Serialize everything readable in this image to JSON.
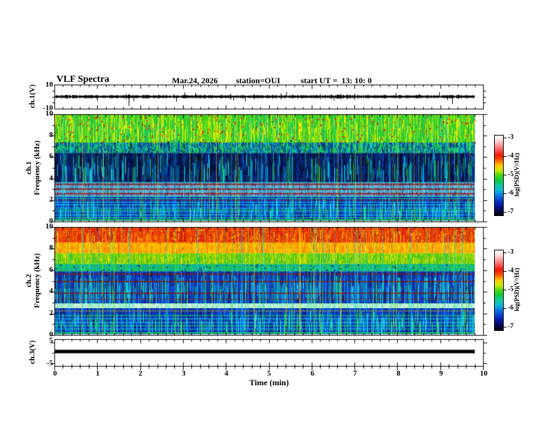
{
  "title": {
    "main": "VLF Spectra",
    "date": "Mar.24, 2026",
    "station": "station=OUI",
    "start_ut": "start UT =  13: 10: 0"
  },
  "xaxis": {
    "label": "Time (min)",
    "ticks": [
      "0",
      "1",
      "2",
      "3",
      "4",
      "5",
      "6",
      "7",
      "8",
      "9",
      "10"
    ]
  },
  "panels": {
    "ch1_wave": {
      "label": "ch.1(V)",
      "ytop": "10",
      "ybottom": "-10"
    },
    "spec1": {
      "label": "ch.1\nFrequency (kHz)",
      "yticks": [
        "10",
        "8",
        "6",
        "4",
        "2",
        "0"
      ]
    },
    "spec2": {
      "label": "ch.2\nFrequency (kHz)",
      "yticks": [
        "10",
        "8",
        "6",
        "4",
        "2",
        "0"
      ]
    },
    "ch3_wave": {
      "label": "ch.3(V)",
      "ytop": "5",
      "ybottom": "-5"
    }
  },
  "colorbars": [
    {
      "label": "log(PSD)(V²/Hz)",
      "ticks": [
        "-3",
        "-4",
        "-5",
        "-6",
        "-7"
      ],
      "gradient": [
        "#ffffff",
        "#ffd8d8",
        "#ff9898",
        "#ff5050",
        "#f01800",
        "#ff6000",
        "#ffc800",
        "#c8e800",
        "#48d810",
        "#10c840",
        "#10c8a0",
        "#10b8d8",
        "#0878e0",
        "#0840d0",
        "#0418a0",
        "#020a50",
        "#000010"
      ]
    },
    {
      "label": "log(PSD)(V²/Hz)",
      "ticks": [
        "-3",
        "-4",
        "-5",
        "-6",
        "-7"
      ],
      "gradient": [
        "#ffffff",
        "#ffd8d8",
        "#ff9898",
        "#ff5050",
        "#f01800",
        "#ff6000",
        "#ffc800",
        "#c8e800",
        "#48d810",
        "#10c840",
        "#10c8a0",
        "#10b8d8",
        "#0878e0",
        "#0840d0",
        "#0418a0",
        "#020a50",
        "#000010"
      ]
    }
  ],
  "chart_data": [
    {
      "id": "ch1_waveform",
      "type": "line",
      "title": "ch.1 raw signal",
      "xlabel": "Time (min)",
      "ylabel": "ch.1(V)",
      "xlim": [
        0,
        10
      ],
      "ylim": [
        -10,
        10
      ],
      "data_end_min": 9.83,
      "seed": 7,
      "signal": {
        "mean_v": 0,
        "noise_amp_v": 1.2,
        "burst_prob": 0.06,
        "spike_prob": 0.018,
        "spike_down_v": -8,
        "spike_up_prob": 0.007,
        "spike_up_v": 4
      }
    },
    {
      "id": "ch1_spectrogram",
      "type": "heatmap",
      "title": "ch.1 VLF spectrogram",
      "xlabel": "Time (min)",
      "ylabel": "ch.1 Frequency (kHz)",
      "zlabel": "log(PSD)(V²/Hz)",
      "xlim": [
        0,
        10
      ],
      "ylim": [
        0,
        10
      ],
      "zlim": [
        -7,
        -3
      ],
      "data_end_min": 9.83,
      "seed": 11,
      "bands": [
        {
          "f": [
            7.4,
            10
          ],
          "palette": [
            "#2ec82e",
            "#3ad428",
            "#55d81a",
            "#83dd0e",
            "#b2e800",
            "#e6f000",
            "#27bd35",
            "#1fc34a",
            "#36cf2d",
            "#49d51f"
          ],
          "streaks": {
            "prob": 0.3,
            "colors": [
              "#e8f000",
              "#ffe400",
              "#19c080"
            ]
          }
        },
        {
          "f": [
            6.4,
            7.4
          ],
          "palette": [
            "#1cb84c",
            "#12b090",
            "#10c8c8",
            "#0b3fa0",
            "#082472",
            "#25c838",
            "#0a55c0"
          ],
          "streaks": {
            "prob": 0.25,
            "colors": [
              "#00cfe8",
              "#27e03c"
            ]
          }
        },
        {
          "f": [
            3.6,
            6.4
          ],
          "palette": [
            "#020d38",
            "#03164e",
            "#041f66",
            "#030a28",
            "#062a80",
            "#0a38a0"
          ],
          "streaks": {
            "prob": 0.3,
            "colors": [
              "#00cfe8",
              "#22dcff",
              "#2be0c8",
              "#27e03c"
            ]
          }
        },
        {
          "f": [
            2.3,
            3.6
          ],
          "palette": [
            "#7e90b6",
            "#8a9ac0",
            "#7082aa",
            "#97a6c8",
            "#5f74a2",
            "#3a4f86"
          ],
          "streaks": {
            "prob": 0.15,
            "colors": [
              "#22dcff",
              "#9ae8f0"
            ]
          }
        },
        {
          "f": [
            0,
            2.3
          ],
          "palette": [
            "#0a36c8",
            "#0c2ca0",
            "#0843dc",
            "#062a88",
            "#051c60",
            "#0a4fe8"
          ],
          "streaks": {
            "prob": 0.45,
            "colors": [
              "#00d4ee",
              "#24e4ff",
              "#28e06a"
            ]
          }
        }
      ],
      "h_lines": [
        {
          "f": 3.45,
          "color": "#7a1626",
          "w": 2
        },
        {
          "f": 3.0,
          "color": "#7a1626",
          "w": 2
        },
        {
          "f": 2.55,
          "color": "#7a1626",
          "w": 2
        },
        {
          "f": 1.95,
          "color": "#8a1a2a",
          "w": 1
        },
        {
          "f": 3.62,
          "color": "#20e0e8",
          "w": 1
        },
        {
          "f": 3.18,
          "color": "#28e8f0",
          "w": 1
        },
        {
          "f": 2.78,
          "color": "#20d8e8",
          "w": 1
        },
        {
          "f": 2.3,
          "color": "#30e8d0",
          "w": 1
        },
        {
          "f": 2.1,
          "color": "#28e08a",
          "w": 1
        },
        {
          "f": 1.75,
          "color": "#22d8e8",
          "w": 1
        },
        {
          "f": 1.5,
          "color": "#2ae4f2",
          "w": 1
        },
        {
          "f": 1.2,
          "color": "#20d0e8",
          "w": 1
        },
        {
          "f": 1.02,
          "color": "#2ce060",
          "w": 1
        },
        {
          "f": 0.85,
          "color": "#24daec",
          "w": 1
        },
        {
          "f": 0.55,
          "color": "#28e2f0",
          "w": 1
        },
        {
          "f": 0.3,
          "color": "#2ce08a",
          "w": 1
        },
        {
          "f": 0.1,
          "color": "#28d84c",
          "w": 2
        }
      ],
      "v_streaks": {
        "count": 120,
        "colors": [
          "#00dff0",
          "#2fe860",
          "#eef000",
          "#19c8ff"
        ],
        "alpha": [
          0.18,
          0.55
        ]
      },
      "speckles": [
        {
          "f": [
            7.4,
            10
          ],
          "count": 300,
          "colors": [
            "#e03010",
            "#c82400",
            "#ff5020"
          ]
        },
        {
          "f": [
            6.4,
            7.6
          ],
          "count": 120,
          "colors": [
            "#08306e",
            "#0a3f90"
          ]
        }
      ]
    },
    {
      "id": "ch2_spectrogram",
      "type": "heatmap",
      "title": "ch.2 VLF spectrogram",
      "xlabel": "Time (min)",
      "ylabel": "ch.2 Frequency (kHz)",
      "zlabel": "log(PSD)(V²/Hz)",
      "xlim": [
        0,
        10
      ],
      "ylim": [
        0,
        10
      ],
      "zlim": [
        -7,
        -3
      ],
      "data_end_min": 9.83,
      "seed": 23,
      "bands": [
        {
          "f": [
            8.6,
            10
          ],
          "palette": [
            "#e8330e",
            "#f04600",
            "#e02408",
            "#f25b00",
            "#d81e10",
            "#f07400",
            "#ef3b05"
          ],
          "streaks": {
            "prob": 0.35,
            "colors": [
              "#ffc400",
              "#b81600",
              "#ff6a00"
            ]
          }
        },
        {
          "f": [
            7.6,
            8.6
          ],
          "palette": [
            "#ff9800",
            "#ffb400",
            "#f8c800",
            "#ffa00a",
            "#f0880a",
            "#ffd400"
          ],
          "streaks": {
            "prob": 0.25,
            "colors": [
              "#ff5a00",
              "#ffe800"
            ]
          }
        },
        {
          "f": [
            6.6,
            7.6
          ],
          "palette": [
            "#d2e200",
            "#a8d800",
            "#6ccc0a",
            "#3ec41e",
            "#8ad404",
            "#57c916"
          ],
          "streaks": {
            "prob": 0.2,
            "colors": [
              "#ffd000",
              "#22c040"
            ]
          }
        },
        {
          "f": [
            5.9,
            6.6
          ],
          "palette": [
            "#22c23e",
            "#14b86e",
            "#0fb09a",
            "#18c252",
            "#10a8b0"
          ],
          "streaks": {
            "prob": 0.2,
            "colors": [
              "#00d2ea",
              "#2ae070"
            ]
          }
        },
        {
          "f": [
            2.9,
            5.9
          ],
          "palette": [
            "#0a36c4",
            "#0b2c9c",
            "#0941d4",
            "#072a86",
            "#05205e",
            "#0c4ae0"
          ],
          "streaks": {
            "prob": 0.5,
            "colors": [
              "#00d2ea",
              "#26e2ff",
              "#2ae070",
              "#1ed4c0"
            ]
          }
        },
        {
          "f": [
            2.45,
            2.9
          ],
          "palette": [
            "#c8f0e0",
            "#a0ecd0",
            "#e0f8ee",
            "#82e4c0",
            "#aaf0b8"
          ],
          "streaks": {
            "prob": 0.1,
            "colors": [
              "#ffffff"
            ]
          }
        },
        {
          "f": [
            0,
            2.45
          ],
          "palette": [
            "#0a38c8",
            "#0b2ea6",
            "#0844d8",
            "#062b8a",
            "#052060",
            "#0d4de6"
          ],
          "streaks": {
            "prob": 0.5,
            "colors": [
              "#00d4ee",
              "#28e4ff",
              "#2ce072"
            ]
          }
        }
      ],
      "h_lines": [
        {
          "f": 5.65,
          "color": "#7a1626",
          "w": 2
        },
        {
          "f": 4.95,
          "color": "#7a1626",
          "w": 2
        },
        {
          "f": 3.85,
          "color": "#7a1626",
          "w": 2
        },
        {
          "f": 3.3,
          "color": "#88202e",
          "w": 1
        },
        {
          "f": 2.2,
          "color": "#6a7080",
          "w": 2
        },
        {
          "f": 1.75,
          "color": "#28e080",
          "w": 1
        },
        {
          "f": 1.45,
          "color": "#24daec",
          "w": 1
        },
        {
          "f": 1.1,
          "color": "#2ae4f2",
          "w": 1
        },
        {
          "f": 0.8,
          "color": "#28e08a",
          "w": 1
        },
        {
          "f": 0.5,
          "color": "#24daec",
          "w": 1
        },
        {
          "f": 0.12,
          "color": "#2ad84e",
          "w": 2
        }
      ],
      "v_streaks": {
        "count": 140,
        "colors": [
          "#00dff0",
          "#2fe860",
          "#e8ee00",
          "#19c8ff"
        ],
        "alpha": [
          0.2,
          0.6
        ]
      },
      "speckles": [
        {
          "f": [
            8.6,
            10
          ],
          "count": 260,
          "colors": [
            "#ffdd00",
            "#b01800",
            "#ff8800"
          ]
        },
        {
          "f": [
            5.9,
            6.6
          ],
          "count": 100,
          "colors": [
            "#0a3f90",
            "#083070"
          ]
        }
      ]
    },
    {
      "id": "ch3_waveform",
      "type": "line",
      "title": "ch.3 raw signal",
      "xlabel": "Time (min)",
      "ylabel": "ch.3(V)",
      "xlim": [
        0,
        10
      ],
      "ylim": [
        -6.5,
        6.5
      ],
      "data_end_min": 9.83,
      "seed": 5,
      "signal": {
        "value_v": 0.5,
        "half_width_v": 0.85
      }
    }
  ]
}
